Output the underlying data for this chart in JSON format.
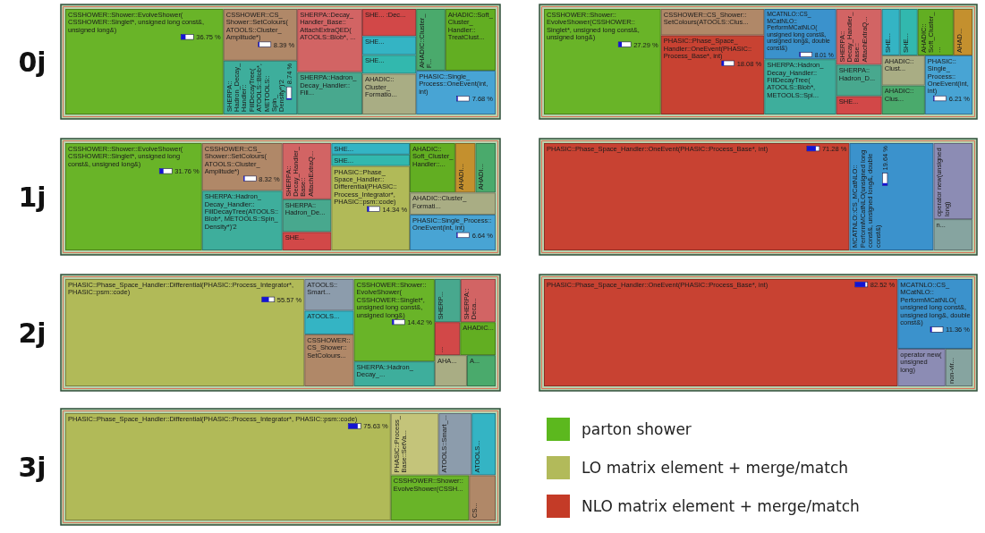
{
  "chart_data": [
    {
      "type": "other",
      "title": "0j",
      "categories": [
        "CSSHOWER::Shower::EvolveShower(CSSHOWER::Singlet*, unsigned long const&, unsigned long&)",
        "CSSHOWER::CS_Shower::SetColours(ATOOLS::Cluster_Amplitude*)",
        "SHERPA::Hadron_Decay_Handler::FillDecayTree(ATOOLS::Blob*, METOOLS::Spin_Density*)'2",
        "SHERPA::Decay_Handler_Base::AttachExtraQED(ATOOLS::Blob*, ...",
        "SHERPA::Hadron_Decay_Handler::Fill...",
        "SHE... :Dec...",
        "SHE...",
        "SHE...",
        "AHADIC::Cluster_Formatio...",
        "AHADIC::Cluster_F...",
        "AHADIC::Soft_Cluster_Handler::TreatClust...",
        "PHASIC::Single_Process::OneEvent(int, int)"
      ],
      "values": [
        36.75,
        8.39,
        8.74,
        null,
        null,
        null,
        null,
        null,
        null,
        null,
        null,
        7.68
      ],
      "value_labels": [
        "36.75 %",
        "8.39 %",
        "8.74 %",
        null,
        null,
        null,
        null,
        null,
        null,
        null,
        null,
        "7.68 %"
      ],
      "colors": [
        "#69b428",
        "#b08868",
        "#3eae9c",
        "#d26464",
        "#48a88e",
        "#d24848",
        "#34b4c4",
        "#32b8ae",
        "#a9ad84",
        "#4aaa6c",
        "#62ae22",
        "#48a4d4"
      ]
    },
    {
      "type": "other",
      "categories": [
        "CSSHOWER::Shower::EvolveShower(CSSHOWER::Singlet*, unsigned long const&, unsigned long&)",
        "CSSHOWER::CS_Shower::SetColours(ATOOLS::Clus...",
        "PHASIC::Phase_Space_Handler::OneEvent(PHASIC::Process_Base*, int)",
        "MCATNLO::CS_MCatNLO::PerformMCatNLO(unsigned long const&, unsigned long&, double const&)",
        "SHERPA::Hadron_Decay_Handler::FillDecayTree(ATOOLS::Blob*, METOOLS::Spi...",
        "SHERPA::Decay_Handler_Base::AttachExtraQ...",
        "SHERPA::Hadron_D...",
        "SHE...",
        "SHE...",
        "SHE...",
        "AHADIC::Soft_Cluster_...",
        "AHAD...",
        "AHADIC::Clust...",
        "AHADIC::Clus...",
        "PHASIC::Single_Process::OneEvent(int, int)"
      ],
      "values": [
        27.29,
        null,
        18.08,
        8.01,
        null,
        null,
        null,
        null,
        null,
        null,
        null,
        null,
        null,
        null,
        6.21
      ],
      "value_labels": [
        "27.29 %",
        null,
        "18.08 %",
        "8.01 %",
        null,
        null,
        null,
        null,
        null,
        null,
        null,
        null,
        null,
        null,
        "6.21 %"
      ],
      "colors": [
        "#69b428",
        "#b08868",
        "#c84232",
        "#3b92cc",
        "#3eae9c",
        "#d26464",
        "#48a88e",
        "#d24848",
        "#34b4c4",
        "#32b8ae",
        "#62ae22",
        "#c4902e",
        "#a9ad84",
        "#4aaa6c",
        "#48a4d4"
      ]
    },
    {
      "type": "other",
      "title": "1j",
      "categories": [
        "CSSHOWER::Shower::EvolveShower(CSSHOWER::Singlet*, unsigned long const&, unsigned long&)",
        "CSSHOWER::CS_Shower::SetColours(ATOOLS::Cluster_Amplitude*)",
        "SHERPA::Hadron_Decay_Handler::FillDecayTree(ATOOLS::Blob*, METOOLS::Spin_Density*)'2",
        "SHERPA::Decay_Handler_Base::AttachExtraQ...",
        "SHERPA::Hadron_De...",
        "SHE...",
        "SHE...",
        "SHE...",
        "PHASIC::Phase_Space_Handler::Differential(PHASIC::Process_Integrator*, PHASIC::psm::code)",
        "AHADIC::Soft_Cluster_Handler::...",
        "AHADI...",
        "AHADI...",
        "AHADIC::Cluster_Formati...",
        "PHASIC::Single_Process::OneEvent(int, int)"
      ],
      "values": [
        31.76,
        8.32,
        null,
        null,
        null,
        null,
        null,
        null,
        14.34,
        null,
        null,
        null,
        null,
        6.64
      ],
      "value_labels": [
        "31.76 %",
        "8.32 %",
        null,
        null,
        null,
        null,
        null,
        null,
        "14.34 %",
        null,
        null,
        null,
        null,
        "6.64 %"
      ],
      "colors": [
        "#69b428",
        "#b08868",
        "#3eae9c",
        "#d26464",
        "#48a88e",
        "#d24848",
        "#34b4c4",
        "#32b8ae",
        "#b1ba58",
        "#62ae22",
        "#c4902e",
        "#4aaa6c",
        "#a9ad84",
        "#48a4d4"
      ]
    },
    {
      "type": "other",
      "categories": [
        "PHASIC::Phase_Space_Handler::OneEvent(PHASIC::Process_Base*, int)",
        "MCATNLO::CS_MCatNLO::PerformMCatNLO(unsigned long const&, unsigned long&, double const&)",
        "operator new(unsigned long)",
        "n..."
      ],
      "values": [
        71.28,
        19.64,
        null,
        null
      ],
      "value_labels": [
        "71.28 %",
        "19.64 %",
        null,
        null
      ],
      "colors": [
        "#c84232",
        "#3b92cc",
        "#8c8cb4",
        "#86a4a0"
      ]
    },
    {
      "type": "other",
      "title": "2j",
      "categories": [
        "PHASIC::Phase_Space_Handler::Differential(PHASIC::Process_Integrator*, PHASIC::psm::code)",
        "ATOOLS::Smart...",
        "ATOOLS...",
        "CSSHOWER::CS_Shower::SetColours...",
        "CSSHOWER::Shower::EvolveShower(CSSHOWER::Singlet*, unsigned long const&, unsigned long&)",
        "SHERPA::Hadron_Decay_...",
        "SHERP...",
        "SHERPA::Deca...",
        "...",
        "AHADIC...",
        "AHA...",
        "A..."
      ],
      "values": [
        55.57,
        null,
        null,
        null,
        14.42,
        null,
        null,
        null,
        null,
        null,
        null,
        null
      ],
      "value_labels": [
        "55.57 %",
        null,
        null,
        null,
        "14.42 %",
        null,
        null,
        null,
        null,
        null,
        null,
        null
      ],
      "colors": [
        "#b1ba58",
        "#8c9cac",
        "#34b4c4",
        "#b08868",
        "#69b428",
        "#3eae9c",
        "#48a88e",
        "#d26464",
        "#d24848",
        "#62ae22",
        "#a9ad84",
        "#4aaa6c"
      ]
    },
    {
      "type": "other",
      "categories": [
        "PHASIC::Phase_Space_Handler::OneEvent(PHASIC::Process_Base*, int)",
        "MCATNLO::CS_MCatNLO::PerformMCatNLO(unsigned long const&, unsigned long&, double const&)",
        "operator new(unsigned long)",
        "non-vir..."
      ],
      "values": [
        82.52,
        11.36,
        null,
        null
      ],
      "value_labels": [
        "82.52 %",
        "11.36 %",
        null,
        null
      ],
      "colors": [
        "#c84232",
        "#3b92cc",
        "#8c8cb4",
        "#86a4a0"
      ]
    },
    {
      "type": "other",
      "title": "3j",
      "categories": [
        "PHASIC::Phase_Space_Handler::Differential(PHASIC::Process_Integrator*, PHASIC::psm::code)",
        "PHASIC::Process_Base::SetVa...",
        "ATOOLS::Smart_...",
        "ATOOLS...",
        "CSSHOWER::Shower::EvolveShower(CSSH...",
        "CS..."
      ],
      "values": [
        75.63,
        null,
        null,
        null,
        null,
        null
      ],
      "value_labels": [
        "75.63 %",
        null,
        null,
        null,
        null,
        null
      ],
      "colors": [
        "#b1ba58",
        "#c4c47a",
        "#8c9cac",
        "#34b4c4",
        "#69b428",
        "#b08868"
      ]
    },
    {
      "type": "other",
      "series": [
        {
          "name": "parton shower",
          "color": "#5cb81e"
        },
        {
          "name": "LO matrix element + merge/match",
          "color": "#b2ba5a"
        },
        {
          "name": "NLO matrix element + merge/match",
          "color": "#c43b27"
        }
      ]
    }
  ]
}
